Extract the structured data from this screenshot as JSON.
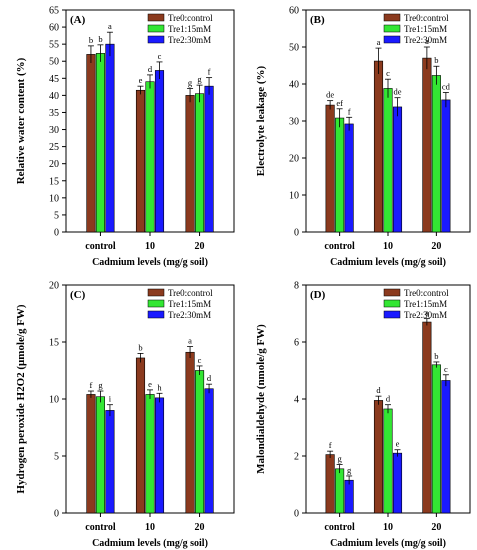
{
  "colors": {
    "Tre0:control": "#8b3a1e",
    "Tre1:15mM": "#33e633",
    "Tre2:30mM": "#1a1aff"
  },
  "chart_data": [
    {
      "type": "bar",
      "panel": "(A)",
      "categories": [
        "control",
        "10",
        "20"
      ],
      "xlabel": "Cadmium levels (mg/g soil)",
      "ylabel": "Relative water content (%)",
      "ylim": [
        0,
        65
      ],
      "yticks": [
        "0",
        "5",
        "10",
        "15",
        "20",
        "25",
        "30",
        "35",
        "40",
        "45",
        "50",
        "55",
        "60",
        "65"
      ],
      "legend_position": "top-right",
      "series": [
        {
          "name": "Tre0:control",
          "values": [
            52,
            41.5,
            40
          ],
          "errors": [
            2.5,
            1.2,
            2
          ],
          "letters": [
            "b",
            "e",
            "g"
          ]
        },
        {
          "name": "Tre1:15mM",
          "values": [
            52.3,
            44,
            40.5
          ],
          "errors": [
            2.5,
            2,
            2.5
          ],
          "letters": [
            "b",
            "d",
            "g"
          ]
        },
        {
          "name": "Tre2:30mM",
          "values": [
            55,
            47.3,
            42.7
          ],
          "errors": [
            3.5,
            2.5,
            2.5
          ],
          "letters": [
            "a",
            "c",
            "f"
          ]
        }
      ]
    },
    {
      "type": "bar",
      "panel": "(B)",
      "categories": [
        "control",
        "10",
        "20"
      ],
      "xlabel": "Cadmium levels (mg/g soil)",
      "ylabel": "Electrolyte leakage (%)",
      "ylim": [
        0,
        60
      ],
      "yticks": [
        "0",
        "10",
        "20",
        "30",
        "40",
        "50",
        "60"
      ],
      "legend_position": "top-right",
      "series": [
        {
          "name": "Tre0:control",
          "values": [
            34.3,
            46.2,
            47
          ],
          "errors": [
            1.2,
            3.5,
            3
          ],
          "letters": [
            "de",
            "a",
            "a"
          ]
        },
        {
          "name": "Tre1:15mM",
          "values": [
            30.8,
            38.8,
            42.3
          ],
          "errors": [
            2.5,
            2.5,
            2.5
          ],
          "letters": [
            "ef",
            "c",
            "b"
          ]
        },
        {
          "name": "Tre2:30mM",
          "values": [
            29.2,
            33.8,
            35.7
          ],
          "errors": [
            1.8,
            2.5,
            2
          ],
          "letters": [
            "f",
            "de",
            "cd"
          ]
        }
      ]
    },
    {
      "type": "bar",
      "panel": "(C)",
      "categories": [
        "control",
        "10",
        "20"
      ],
      "xlabel": "Cadmium levels (mg/g soil)",
      "ylabel": "Hydrogen peroxide H2O2 (μmole/g FW)",
      "ylim": [
        0,
        20
      ],
      "yticks": [
        "0",
        "5",
        "10",
        "15",
        "20"
      ],
      "legend_position": "top-right",
      "series": [
        {
          "name": "Tre0:control",
          "values": [
            10.4,
            13.6,
            14.1
          ],
          "errors": [
            0.3,
            0.4,
            0.5
          ],
          "letters": [
            "f",
            "b",
            "a"
          ]
        },
        {
          "name": "Tre1:15mM",
          "values": [
            10.2,
            10.4,
            12.5
          ],
          "errors": [
            0.5,
            0.4,
            0.4
          ],
          "letters": [
            "g",
            "e",
            "c"
          ]
        },
        {
          "name": "Tre2:30mM",
          "values": [
            9,
            10.1,
            10.9
          ],
          "errors": [
            0.5,
            0.4,
            0.4
          ],
          "letters": [
            "i",
            "h",
            "d"
          ]
        }
      ]
    },
    {
      "type": "bar",
      "panel": "(D)",
      "categories": [
        "control",
        "10",
        "20"
      ],
      "xlabel": "Cadmium levels (mg/g soil)",
      "ylabel": "Malondialdehyde (nmole/g FW)",
      "ylim": [
        0,
        8
      ],
      "yticks": [
        "0",
        "2",
        "4",
        "6",
        "8"
      ],
      "legend_position": "top-right",
      "series": [
        {
          "name": "Tre0:control",
          "values": [
            2.05,
            3.95,
            6.7
          ],
          "errors": [
            0.12,
            0.15,
            0.12
          ],
          "letters": [
            "f",
            "d",
            "a"
          ]
        },
        {
          "name": "Tre1:15mM",
          "values": [
            1.55,
            3.65,
            5.2
          ],
          "errors": [
            0.15,
            0.15,
            0.1
          ],
          "letters": [
            "g",
            "d",
            "b"
          ]
        },
        {
          "name": "Tre2:30mM",
          "values": [
            1.15,
            2.1,
            4.65
          ],
          "errors": [
            0.15,
            0.12,
            0.2
          ],
          "letters": [
            "g",
            "e",
            "c"
          ]
        }
      ]
    }
  ]
}
